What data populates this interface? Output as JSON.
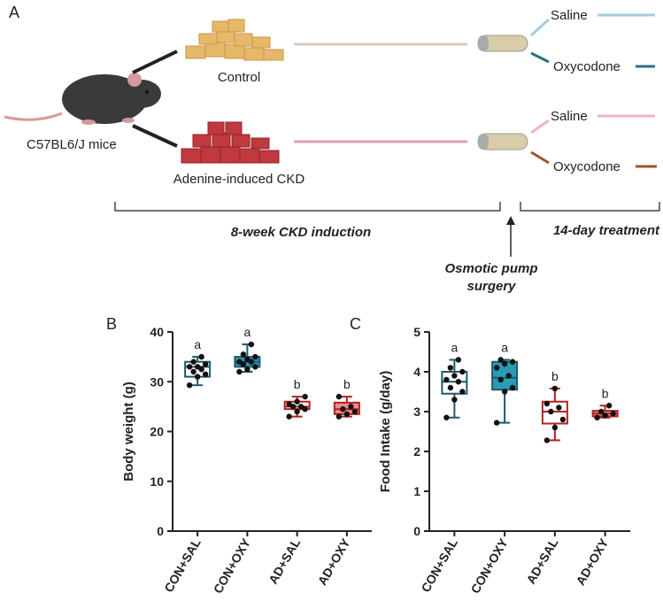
{
  "diagram": {
    "panel": "A",
    "control": "Control",
    "mice": "C57BL6/J mice",
    "ckd": "Adenine-induced CKD",
    "saline_1": "Saline",
    "oxycodone_1": "Oxycodone",
    "saline_2": "Saline",
    "oxycodone_2": "Oxycodone",
    "induction": "8-week CKD induction",
    "treatment": "14-day treatment",
    "surgery_line1": "Osmotic pump",
    "surgery_line2": "surgery"
  },
  "chart_data": [
    {
      "type": "box",
      "panel": "B",
      "y_label": "Body weight (g)",
      "ylim": [
        0,
        40
      ],
      "yticks": [
        0,
        10,
        20,
        30,
        40
      ],
      "categories": [
        "CON+SAL",
        "CON+OXY",
        "AD+SAL",
        "AD+OXY"
      ],
      "boxes": [
        {
          "min": 29.3,
          "q1": 31,
          "median": 33,
          "q3": 34,
          "max": 35,
          "letter": "a",
          "fill": "#ffffff",
          "stroke": "#1d5a6e",
          "points": [
            29.3,
            31,
            31.5,
            32,
            32.5,
            33,
            33,
            33.5,
            34,
            35
          ]
        },
        {
          "min": 32,
          "q1": 33,
          "median": 34,
          "q3": 35,
          "max": 37.5,
          "letter": "a",
          "fill": "#2a9bb5",
          "stroke": "#1d5a6e",
          "points": [
            32,
            32.5,
            33,
            33.5,
            34,
            34,
            34.5,
            35,
            35.5,
            37.5
          ]
        },
        {
          "min": 23,
          "q1": 24.5,
          "median": 25,
          "q3": 26,
          "max": 27,
          "letter": "b",
          "fill": "#ffffff",
          "stroke": "#b22222",
          "points": [
            23,
            24,
            24.5,
            25,
            25,
            25.5,
            26,
            27
          ]
        },
        {
          "min": 23,
          "q1": 23.5,
          "median": 24.5,
          "q3": 25.8,
          "max": 27,
          "letter": "b",
          "fill": "#f08a8a",
          "stroke": "#b22222",
          "points": [
            23,
            23.5,
            24,
            24.5,
            25,
            27
          ]
        }
      ]
    },
    {
      "type": "box",
      "panel": "C",
      "y_label": "Food Intake (g/day)",
      "ylim": [
        0,
        5
      ],
      "yticks": [
        0,
        1,
        2,
        3,
        4,
        5
      ],
      "categories": [
        "CON+SAL",
        "CON+OXY",
        "AD+SAL",
        "AD+OXY"
      ],
      "boxes": [
        {
          "min": 2.85,
          "q1": 3.45,
          "median": 3.75,
          "q3": 4.0,
          "max": 4.3,
          "letter": "a",
          "fill": "#ffffff",
          "stroke": "#1d5a6e",
          "points": [
            2.85,
            3.3,
            3.5,
            3.6,
            3.75,
            3.8,
            3.9,
            4.0,
            4.1,
            4.3
          ]
        },
        {
          "min": 2.72,
          "q1": 3.55,
          "median": 3.85,
          "q3": 4.25,
          "max": 4.3,
          "letter": "a",
          "fill": "#2a9bb5",
          "stroke": "#1d5a6e",
          "points": [
            2.72,
            3.5,
            3.6,
            3.8,
            3.9,
            4.1,
            4.2,
            4.25,
            4.3
          ]
        },
        {
          "min": 2.28,
          "q1": 2.7,
          "median": 3.0,
          "q3": 3.25,
          "max": 3.58,
          "letter": "b",
          "fill": "#ffffff",
          "stroke": "#b22222",
          "points": [
            2.28,
            2.6,
            2.8,
            3.0,
            3.1,
            3.2,
            3.58
          ]
        },
        {
          "min": 2.85,
          "q1": 2.88,
          "median": 2.95,
          "q3": 3.02,
          "max": 3.15,
          "letter": "b",
          "fill": "#f08a8a",
          "stroke": "#b22222",
          "points": [
            2.85,
            2.9,
            2.95,
            3.0,
            3.15
          ]
        }
      ]
    }
  ]
}
